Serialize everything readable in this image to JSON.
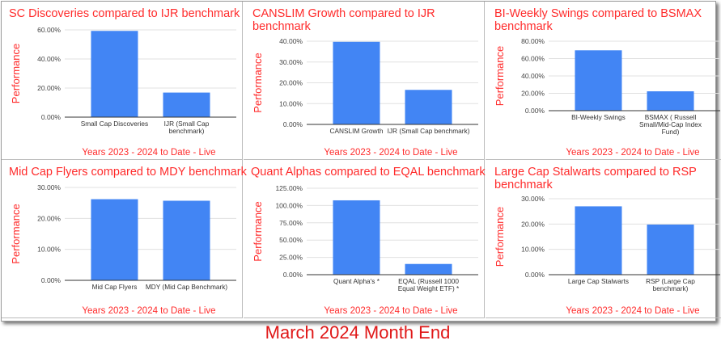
{
  "caption": "March 2024 Month End",
  "colors": {
    "bar": "#4285f4",
    "text_red": "#ff2b2b",
    "grid": "#e0e0e0",
    "axis": "#333333"
  },
  "chart_data": [
    {
      "type": "bar",
      "title": "SC Discoveries compared to IJR benchmark",
      "ylabel": "Performance",
      "xlabel": "Years 2023 - 2024 to Date - Live",
      "categories": [
        [
          "Small Cap Discoveries"
        ],
        [
          "IJR (Small Cap",
          "benchmark)"
        ]
      ],
      "values": [
        59.3,
        16.9
      ],
      "ylim": [
        0,
        60
      ],
      "yticks": [
        "0.00%",
        "20.00%",
        "40.00%",
        "60.00%"
      ],
      "grid": true
    },
    {
      "type": "bar",
      "title": "CANSLIM Growth compared to IJR benchmark",
      "ylabel": "Performance",
      "xlabel": "Years 2023 - 2024 to Date - Live",
      "categories": [
        [
          "CANSLIM Growth"
        ],
        [
          "IJR (Small Cap benchmark)"
        ]
      ],
      "values": [
        39.7,
        16.6
      ],
      "ylim": [
        0,
        40
      ],
      "yticks": [
        "0.00%",
        "10.00%",
        "20.00%",
        "30.00%",
        "40.00%"
      ],
      "grid": true
    },
    {
      "type": "bar",
      "title": "BI-Weekly Swings compared to BSMAX benchmark",
      "ylabel": "Performance",
      "xlabel": "Years 2023 - 2024 to Date - Live",
      "categories": [
        [
          "BI-Weekly Swings"
        ],
        [
          "BSMAX ( Russell",
          "Small/Mid-Cap Index",
          "Fund)"
        ]
      ],
      "values": [
        69.5,
        22.3
      ],
      "ylim": [
        0,
        80
      ],
      "yticks": [
        "0.00%",
        "20.00%",
        "40.00%",
        "60.00%",
        "80.00%"
      ],
      "grid": true
    },
    {
      "type": "bar",
      "title": "Mid Cap Flyers compared to MDY benchmark",
      "ylabel": "Performance",
      "xlabel": "Years 2023 - 2024 to Date - Live",
      "categories": [
        [
          "Mid Cap Flyers"
        ],
        [
          "MDY (Mid Cap Benchmark)"
        ]
      ],
      "values": [
        26.2,
        25.7
      ],
      "ylim": [
        0,
        30
      ],
      "yticks": [
        "0.00%",
        "10.00%",
        "20.00%",
        "30.00%"
      ],
      "grid": true
    },
    {
      "type": "bar",
      "title": "Quant Alphas compared to EQAL benchmark",
      "ylabel": "Performance",
      "xlabel": "Years 2023 - 2024 to Date - Live",
      "categories": [
        [
          "Quant Alpha's   *"
        ],
        [
          "EQAL (Russell 1000",
          "Equal Weight ETF)  *"
        ]
      ],
      "values": [
        107.5,
        15.5
      ],
      "ylim": [
        0,
        125
      ],
      "yticks": [
        "0.00%",
        "25.00%",
        "50.00%",
        "75.00%",
        "100.00%",
        "125.00%"
      ],
      "grid": true
    },
    {
      "type": "bar",
      "title": "Large Cap Stalwarts compared to RSP benchmark",
      "ylabel": "Performance",
      "xlabel": "Years 2023 - 2024 to Date - Live",
      "categories": [
        [
          "Large Cap Stalwarts"
        ],
        [
          "RSP (Large Cap",
          "benchmark)"
        ]
      ],
      "values": [
        27.0,
        19.8
      ],
      "ylim": [
        0,
        30
      ],
      "yticks": [
        "0.00%",
        "10.00%",
        "20.00%",
        "30.00%"
      ],
      "grid": true
    }
  ]
}
